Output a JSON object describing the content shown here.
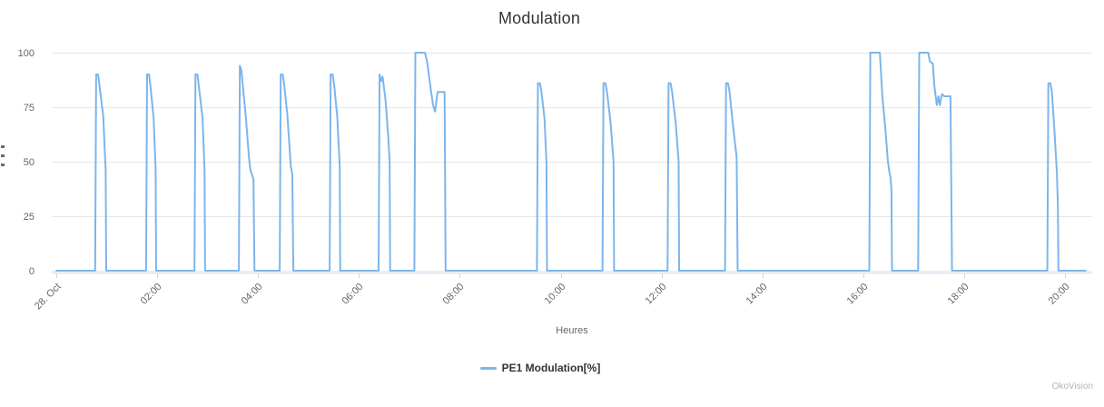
{
  "chart": {
    "title": "Modulation",
    "x_axis_title": "Heures",
    "credits": "OkoVision",
    "legend": [
      {
        "label": "PE1 Modulation[%]",
        "color": "#7cb5ec"
      }
    ]
  },
  "colors": {
    "line": "#7cb5ec",
    "grid": "#e6e6e6",
    "axis": "#ccd6eb",
    "tick_label": "#666666",
    "title": "#333333",
    "credits": "#b4b4b4"
  },
  "chart_data": {
    "type": "line",
    "title": "Modulation",
    "xlabel": "Heures",
    "ylabel": "",
    "series": [
      {
        "name": "PE1 Modulation[%]",
        "color": "#7cb5ec",
        "x_unit": "hours since 28. Oct 00:00",
        "points": [
          [
            0.0,
            0
          ],
          [
            0.77,
            0
          ],
          [
            0.79,
            90
          ],
          [
            0.83,
            90
          ],
          [
            0.86,
            84
          ],
          [
            0.93,
            71
          ],
          [
            0.98,
            46
          ],
          [
            0.99,
            0
          ],
          [
            1.78,
            0
          ],
          [
            1.8,
            90
          ],
          [
            1.84,
            90
          ],
          [
            1.87,
            84
          ],
          [
            1.93,
            70
          ],
          [
            1.97,
            47
          ],
          [
            1.98,
            0
          ],
          [
            2.74,
            0
          ],
          [
            2.76,
            90
          ],
          [
            2.8,
            90
          ],
          [
            2.83,
            84
          ],
          [
            2.9,
            70
          ],
          [
            2.94,
            46
          ],
          [
            2.95,
            0
          ],
          [
            3.62,
            0
          ],
          [
            3.64,
            94
          ],
          [
            3.67,
            92
          ],
          [
            3.72,
            80
          ],
          [
            3.76,
            70
          ],
          [
            3.82,
            52
          ],
          [
            3.85,
            46
          ],
          [
            3.91,
            42
          ],
          [
            3.93,
            0
          ],
          [
            4.43,
            0
          ],
          [
            4.45,
            90
          ],
          [
            4.49,
            90
          ],
          [
            4.52,
            85
          ],
          [
            4.58,
            72
          ],
          [
            4.65,
            48
          ],
          [
            4.68,
            44
          ],
          [
            4.7,
            0
          ],
          [
            5.42,
            0
          ],
          [
            5.44,
            90
          ],
          [
            5.48,
            90
          ],
          [
            5.51,
            85
          ],
          [
            5.57,
            71
          ],
          [
            5.62,
            48
          ],
          [
            5.63,
            0
          ],
          [
            6.39,
            0
          ],
          [
            6.41,
            90
          ],
          [
            6.44,
            87
          ],
          [
            6.47,
            89
          ],
          [
            6.53,
            78
          ],
          [
            6.58,
            62
          ],
          [
            6.61,
            50
          ],
          [
            6.62,
            0
          ],
          [
            7.1,
            0
          ],
          [
            7.12,
            100
          ],
          [
            7.31,
            100
          ],
          [
            7.36,
            95
          ],
          [
            7.42,
            84
          ],
          [
            7.47,
            76
          ],
          [
            7.51,
            73
          ],
          [
            7.56,
            82
          ],
          [
            7.7,
            82
          ],
          [
            7.72,
            0
          ],
          [
            9.53,
            0
          ],
          [
            9.55,
            86
          ],
          [
            9.59,
            86
          ],
          [
            9.62,
            82
          ],
          [
            9.68,
            70
          ],
          [
            9.72,
            50
          ],
          [
            9.73,
            0
          ],
          [
            10.83,
            0
          ],
          [
            10.85,
            86
          ],
          [
            10.89,
            86
          ],
          [
            10.92,
            82
          ],
          [
            10.99,
            68
          ],
          [
            11.05,
            50
          ],
          [
            11.06,
            0
          ],
          [
            12.12,
            0
          ],
          [
            12.14,
            86
          ],
          [
            12.18,
            86
          ],
          [
            12.21,
            82
          ],
          [
            12.28,
            68
          ],
          [
            12.34,
            50
          ],
          [
            12.35,
            0
          ],
          [
            13.26,
            0
          ],
          [
            13.28,
            86
          ],
          [
            13.32,
            86
          ],
          [
            13.35,
            82
          ],
          [
            13.42,
            66
          ],
          [
            13.49,
            52
          ],
          [
            13.51,
            0
          ],
          [
            16.12,
            0
          ],
          [
            16.14,
            100
          ],
          [
            16.33,
            100
          ],
          [
            16.38,
            80
          ],
          [
            16.44,
            65
          ],
          [
            16.49,
            50
          ],
          [
            16.52,
            45
          ],
          [
            16.54,
            43
          ],
          [
            16.56,
            37
          ],
          [
            16.57,
            0
          ],
          [
            17.09,
            0
          ],
          [
            17.11,
            100
          ],
          [
            17.29,
            100
          ],
          [
            17.32,
            96
          ],
          [
            17.38,
            95
          ],
          [
            17.41,
            85
          ],
          [
            17.46,
            76
          ],
          [
            17.49,
            80
          ],
          [
            17.52,
            76
          ],
          [
            17.56,
            81
          ],
          [
            17.61,
            80
          ],
          [
            17.73,
            80
          ],
          [
            17.76,
            0
          ],
          [
            19.65,
            0
          ],
          [
            19.67,
            86
          ],
          [
            19.71,
            86
          ],
          [
            19.74,
            82
          ],
          [
            19.79,
            65
          ],
          [
            19.84,
            45
          ],
          [
            19.86,
            30
          ],
          [
            19.87,
            0
          ],
          [
            20.41,
            0
          ]
        ]
      }
    ],
    "x_ticks": [
      {
        "t": 0,
        "label": "28. Oct"
      },
      {
        "t": 2,
        "label": "02:00"
      },
      {
        "t": 4,
        "label": "04:00"
      },
      {
        "t": 6,
        "label": "06:00"
      },
      {
        "t": 8,
        "label": "08:00"
      },
      {
        "t": 10,
        "label": "10:00"
      },
      {
        "t": 12,
        "label": "12:00"
      },
      {
        "t": 14,
        "label": "14:00"
      },
      {
        "t": 16,
        "label": "16:00"
      },
      {
        "t": 18,
        "label": "18:00"
      },
      {
        "t": 20,
        "label": "20:00"
      }
    ],
    "y_ticks": [
      {
        "v": 0,
        "label": "0"
      },
      {
        "v": 25,
        "label": "25"
      },
      {
        "v": 50,
        "label": "50"
      },
      {
        "v": 75,
        "label": "75"
      },
      {
        "v": 100,
        "label": "100"
      }
    ],
    "ylim": [
      0,
      100
    ],
    "xlim": [
      -0.1,
      20.55
    ],
    "grid": "horizontal-only",
    "legend_position": "bottom-center"
  }
}
